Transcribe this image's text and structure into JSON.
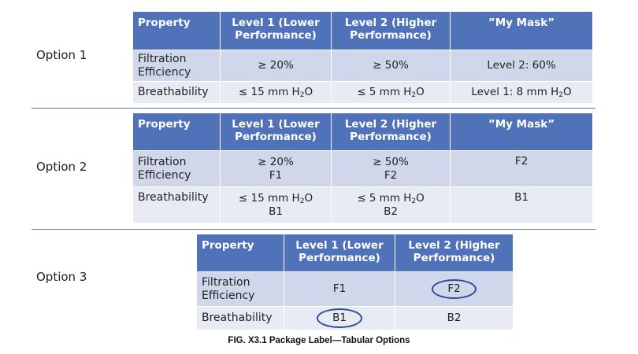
{
  "options": [
    {
      "label": "Option 1",
      "headers": [
        "Property",
        "Level 1 (Lower Performance)",
        "Level 2 (Higher Performance)",
        "”My Mask”"
      ],
      "rows": [
        {
          "property": "Filtration Efficiency",
          "level1": "≥ 20%",
          "level2": "≥ 50%",
          "my_mask": "Level 2: 60%"
        },
        {
          "property": "Breathability",
          "level1": "≤ 15 mm H",
          "level2": "≤ 5 mm H",
          "my_mask": "Level 1: 8 mm H",
          "unit_sub": "2",
          "unit_tail": "O"
        }
      ]
    },
    {
      "label": "Option 2",
      "headers": [
        "Property",
        "Level 1 (Lower Performance)",
        "Level 2 (Higher Performance)",
        "”My Mask”"
      ],
      "rows": [
        {
          "property": "Filtration Efficiency",
          "level1": "≥ 20%",
          "level1_code": "F1",
          "level2": "≥ 50%",
          "level2_code": "F2",
          "my_mask": "F2"
        },
        {
          "property": "Breathability",
          "level1": "≤ 15 mm H",
          "level1_code": "B1",
          "level2": "≤ 5 mm H",
          "level2_code": "B2",
          "my_mask": "B1",
          "unit_sub": "2",
          "unit_tail": "O"
        }
      ]
    },
    {
      "label": "Option 3",
      "headers": [
        "Property",
        "Level 1 (Lower Performance)",
        "Level 2 (Higher Performance)"
      ],
      "rows": [
        {
          "property": "Filtration Efficiency",
          "level1": "F1",
          "level2": "F2",
          "circled": "level2"
        },
        {
          "property": "Breathability",
          "level1": "B1",
          "level2": "B2",
          "circled": "level1"
        }
      ]
    }
  ],
  "caption": "FIG. X3.1 Package Label—Tabular Options",
  "colors": {
    "header_bg": "#4f72b8",
    "row_light": "#e8ebf4",
    "row_dark": "#d0d7ea",
    "circle": "#2f4d95"
  }
}
